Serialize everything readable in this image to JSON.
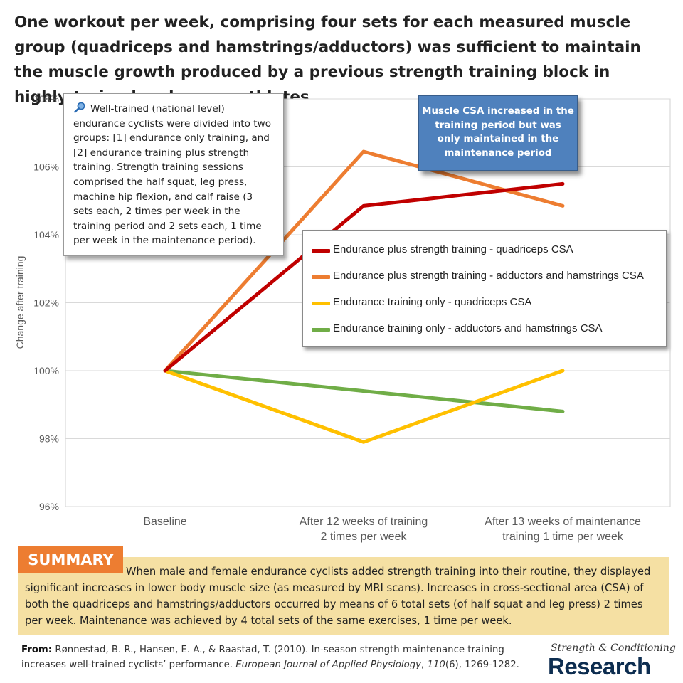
{
  "headline": "One workout per week, comprising four sets for each measured muscle group (quadriceps and hamstrings/adductors) was sufficient to maintain the muscle growth produced by a previous strength training block in highly-trained endurance athletes.",
  "info_box": {
    "icon": "magnifier-icon",
    "text": "Well-trained (national level) endurance cyclists were divided into two groups: [1] endurance only training, and [2] endurance training plus strength training. Strength training sessions comprised the half squat, leg press, machine hip flexion, and calf raise (3 sets each, 2 times per week in the training period and 2 sets each, 1 time per week in the maintenance period)."
  },
  "callout": "Muscle CSA increased in the training period but was only maintained in the maintenance period",
  "chart_data": {
    "type": "line",
    "title": "",
    "ylabel": "Change after training",
    "xlabel": "",
    "categories": [
      "Baseline",
      "After 12 weeks of training\n2 times per week",
      "After 13 weeks of maintenance\ntraining 1 time per week"
    ],
    "ylim": [
      96,
      108
    ],
    "yticks": [
      96,
      98,
      100,
      102,
      104,
      106,
      108
    ],
    "ytick_labels": [
      "96%",
      "98%",
      "100%",
      "102%",
      "104%",
      "106%",
      "108%"
    ],
    "grid": true,
    "legend_position": "center-right",
    "series": [
      {
        "name": "Endurance plus strength training - quadriceps CSA",
        "color": "#c00000",
        "values": [
          100,
          104.85,
          105.5
        ]
      },
      {
        "name": "Endurance plus strength training - adductors and hamstrings CSA",
        "color": "#ed7d31",
        "values": [
          100,
          106.45,
          104.85
        ]
      },
      {
        "name": "Endurance training only - quadriceps CSA",
        "color": "#ffc000",
        "values": [
          100,
          97.9,
          100
        ]
      },
      {
        "name": "Endurance training only - adductors and hamstrings CSA",
        "color": "#70ad47",
        "values": [
          100,
          99.4,
          98.8
        ]
      }
    ]
  },
  "summary": {
    "tag": "SUMMARY",
    "text": "When male and female endurance cyclists added strength training into their routine, they displayed significant increases in lower body muscle size (as measured by MRI scans). Increases in cross-sectional area (CSA) of both the quadriceps and hamstrings/adductors occurred by means of 6 total sets (of half squat and leg press) 2 times per week. Maintenance was achieved by 4 total sets of the same exercises, 1 time per week."
  },
  "citation": {
    "label": "From:",
    "text_before": "Rønnestad, B. R., Hansen, E. A., & Raastad, T. (2010). In-season strength maintenance training increases well-trained cyclists’ performance.",
    "journal": "European Journal of Applied Physiology",
    "volume": "110",
    "issue_pages": "(6), 1269-1282."
  },
  "logo": {
    "script": "Strength & Conditioning",
    "word": "Research"
  }
}
